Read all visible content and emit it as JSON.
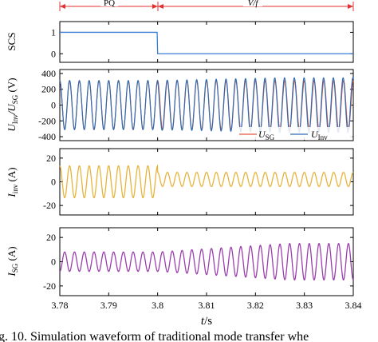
{
  "chart_data": [
    {
      "type": "line",
      "panel": "SCS",
      "ylabel": "SCS",
      "ylim": [
        -0.4,
        1.5
      ],
      "yticks": [
        "1",
        "0"
      ],
      "ytick_values": [
        1,
        0
      ],
      "series": [
        {
          "x": [
            3.78,
            3.7999,
            3.8,
            3.84
          ],
          "y": [
            1,
            1,
            0,
            0
          ],
          "color": "#3b7dd8"
        }
      ],
      "mode_labels": {
        "left": "PQ",
        "right": "V/f"
      },
      "mode_boundaries": [
        3.78,
        3.8,
        3.84
      ]
    },
    {
      "type": "line",
      "panel": "voltage",
      "ylabel_main": "U",
      "ylabel_sub1": "Inv",
      "ylabel_mid": "/U",
      "ylabel_sub2": "SG",
      "ylabel_unit": " (V)",
      "ylim": [
        -450,
        450
      ],
      "yticks": [
        "400",
        "200",
        "0",
        "-200",
        "-400"
      ],
      "ytick_values": [
        400,
        200,
        0,
        -200,
        -400
      ],
      "frequency_hz": 500,
      "series": [
        {
          "legend_main": "U",
          "legend_sub": "SG",
          "color": "#e8553a",
          "amplitude": 310,
          "phase_deg": 0
        },
        {
          "legend_main": "U",
          "legend_sub": "Inv",
          "color": "#2f6db5",
          "amplitude_pq": 310,
          "amplitude_vf_end": 345,
          "phase_deg": 0
        }
      ]
    },
    {
      "type": "line",
      "panel": "inverter_current",
      "ylabel_main": "I",
      "ylabel_sub": "inv",
      "ylabel_unit": " (A)",
      "ylim": [
        -28,
        28
      ],
      "yticks": [
        "20",
        "0",
        "-20"
      ],
      "ytick_values": [
        20,
        0,
        -20
      ],
      "frequency_hz": 500,
      "series": [
        {
          "color": "#e6b43c",
          "offset_pq": 0,
          "amplitude_pq": 13.5,
          "offset_vf": 2,
          "amplitude_vf": 6
        }
      ]
    },
    {
      "type": "line",
      "panel": "sg_current",
      "ylabel_main": "I",
      "ylabel_sub": "SG",
      "ylabel_unit": " (A)",
      "ylim": [
        -28,
        28
      ],
      "yticks": [
        "20",
        "0",
        "-20"
      ],
      "ytick_values": [
        20,
        0,
        -20
      ],
      "frequency_hz": 500,
      "series": [
        {
          "color": "#9b3fae",
          "offset": 0,
          "amplitude_pq": 8,
          "amplitude_vf_end": 15
        }
      ]
    }
  ],
  "x_axis": {
    "label_italic": "t",
    "label_rest": "/s",
    "xlim": [
      3.78,
      3.84
    ],
    "ticks": [
      "3.78",
      "3.79",
      "3.8",
      "3.81",
      "3.82",
      "3.83",
      "3.84"
    ],
    "tick_values": [
      3.78,
      3.79,
      3.8,
      3.81,
      3.82,
      3.83,
      3.84
    ]
  },
  "caption": "g. 10. Simulation waveform of traditional mode transfer whe"
}
